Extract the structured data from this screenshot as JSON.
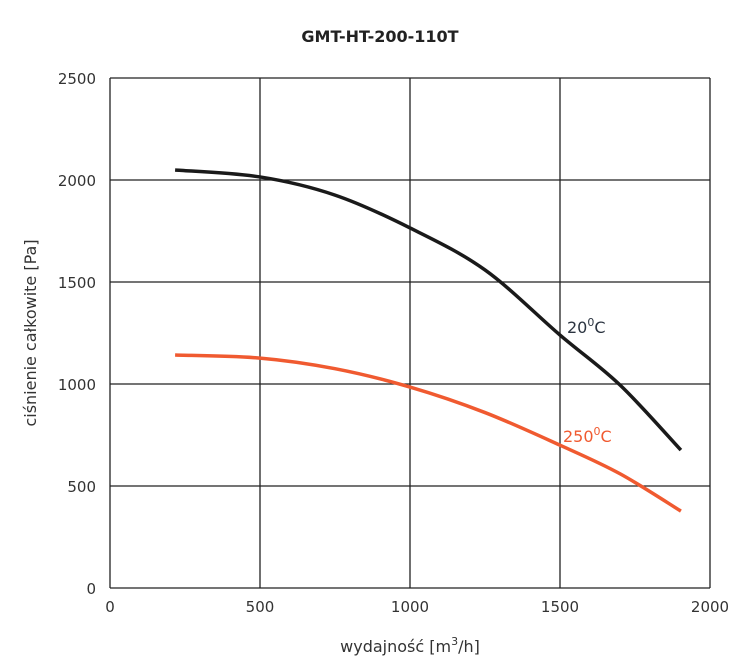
{
  "chart_data": {
    "type": "line",
    "title": "GMT-HT-200-110T",
    "xlabel": {
      "text": "wydajność [m",
      "sup": "3",
      "after": "/h]"
    },
    "ylabel": "ciśnienie całkowite [Pa]",
    "xlim": [
      0,
      2000
    ],
    "ylim": [
      0,
      2500
    ],
    "xticks": [
      0,
      500,
      1000,
      1500,
      2000
    ],
    "yticks": [
      0,
      500,
      1000,
      1500,
      2000,
      2500
    ],
    "grid": true,
    "series": [
      {
        "name": "20°C",
        "label": {
          "value": "20",
          "sup": "0",
          "unit": "C"
        },
        "color": "#1a1a1a",
        "label_color": "#2b3440",
        "x": [
          217,
          500,
          750,
          1000,
          1250,
          1500,
          1700,
          1903
        ],
        "y": [
          2049,
          2015,
          1926,
          1765,
          1559,
          1240,
          995,
          676
        ]
      },
      {
        "name": "250°C",
        "label": {
          "value": "250",
          "sup": "0",
          "unit": "C"
        },
        "color": "#f05a30",
        "label_color": "#f05a30",
        "x": [
          217,
          500,
          750,
          1000,
          1250,
          1500,
          1700,
          1903
        ],
        "y": [
          1142,
          1127,
          1075,
          985,
          860,
          700,
          560,
          377
        ]
      }
    ]
  }
}
